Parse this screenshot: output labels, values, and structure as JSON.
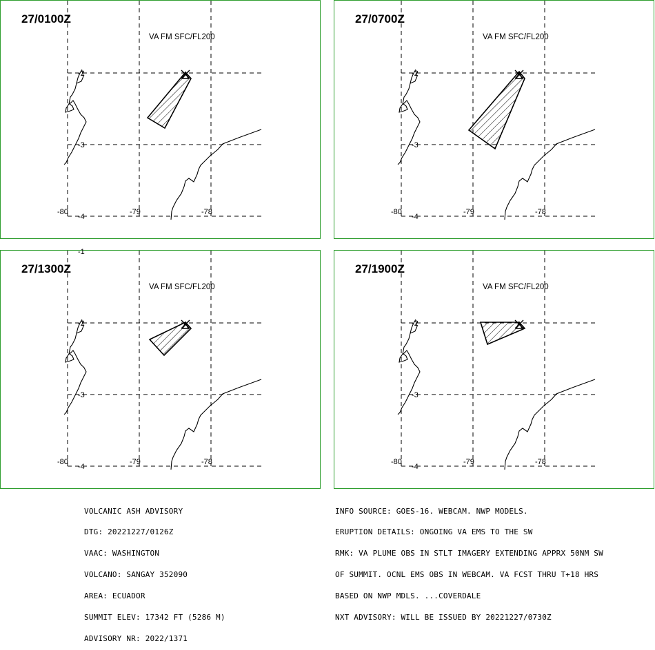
{
  "panels": [
    {
      "time": "27/0100Z",
      "layer": "VA FM SFC/FL200"
    },
    {
      "time": "27/0700Z",
      "layer": "VA FM SFC/FL200"
    },
    {
      "time": "27/1300Z",
      "layer": "VA FM SFC/FL200"
    },
    {
      "time": "27/1900Z",
      "layer": "VA FM SFC/FL200"
    }
  ],
  "map_labels": {
    "lat_minus1": "-1",
    "lat_minus2": "-2",
    "lat_minus3": "-3",
    "lat_minus4": "-4",
    "lon_minus80": "-80",
    "lon_minus79": "-79",
    "lon_minus78": "-78"
  },
  "advisory_left": [
    "VOLCANIC ASH ADVISORY",
    "DTG: 20221227/0126Z",
    "VAAC: WASHINGTON",
    "VOLCANO: SANGAY 352090",
    "AREA: ECUADOR",
    "SUMMIT ELEV: 17342 FT (5286 M)",
    "ADVISORY NR: 2022/1371"
  ],
  "advisory_right": [
    "INFO SOURCE: GOES-16. WEBCAM. NWP MODELS.",
    "ERUPTION DETAILS: ONGOING VA EMS TO THE SW",
    "RMK: VA PLUME OBS IN STLT IMAGERY EXTENDING APPRX 50NM SW",
    "OF SUMMIT. OCNL EMS OBS IN WEBCAM. VA FCST THRU T+18 HRS",
    "BASED ON NWP MDLS. ...COVERDALE",
    "NXT ADVISORY: WILL BE ISSUED BY 20221227/0730Z"
  ]
}
